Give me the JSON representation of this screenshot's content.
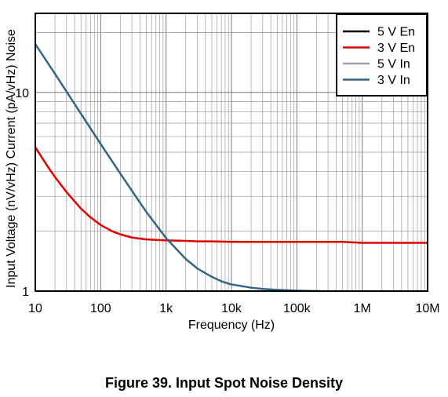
{
  "chart_data": {
    "type": "line",
    "title": "",
    "xlabel": "Frequency (Hz)",
    "ylabel": "Input Voltage (nV/vHz) Current (pA/vHz) Noise",
    "x_scale": "log",
    "y_scale": "log",
    "xlim": [
      10,
      10000000
    ],
    "ylim": [
      1,
      25
    ],
    "x_ticks": [
      {
        "value": 10,
        "label": "10"
      },
      {
        "value": 100,
        "label": "100"
      },
      {
        "value": 1000,
        "label": "1k"
      },
      {
        "value": 10000,
        "label": "10k"
      },
      {
        "value": 100000,
        "label": "100k"
      },
      {
        "value": 1000000,
        "label": "1M"
      },
      {
        "value": 10000000,
        "label": "10M"
      }
    ],
    "y_ticks": [
      {
        "value": 1,
        "label": "1"
      },
      {
        "value": 10,
        "label": "10"
      }
    ],
    "grid": true,
    "legend_position": "top-right",
    "series": [
      {
        "name": "5 V En",
        "color": "#000000",
        "x": [],
        "y": []
      },
      {
        "name": "3 V En",
        "color": "#e00000",
        "x": [
          10,
          15,
          20,
          30,
          50,
          70,
          100,
          150,
          200,
          300,
          500,
          700,
          1000,
          2000,
          3000,
          5000,
          10000,
          100000,
          500000,
          1000000,
          10000000
        ],
        "y": [
          5.3,
          4.3,
          3.75,
          3.15,
          2.6,
          2.35,
          2.15,
          2.0,
          1.93,
          1.86,
          1.82,
          1.81,
          1.8,
          1.79,
          1.78,
          1.78,
          1.77,
          1.77,
          1.77,
          1.75,
          1.75
        ]
      },
      {
        "name": "5 V In",
        "color": "#a0a0a0",
        "x": [],
        "y": []
      },
      {
        "name": "3 V In",
        "color": "#336680",
        "x": [
          10,
          20,
          30,
          50,
          100,
          200,
          300,
          500,
          1000,
          2000,
          3000,
          5000,
          7000,
          10000,
          20000,
          30000,
          50000,
          70000,
          100000,
          150000,
          230000
        ],
        "y": [
          17.5,
          12.4,
          10.1,
          7.8,
          5.5,
          3.9,
          3.2,
          2.5,
          1.85,
          1.45,
          1.3,
          1.18,
          1.12,
          1.08,
          1.04,
          1.025,
          1.015,
          1.01,
          1.005,
          1.002,
          1.0
        ]
      }
    ]
  },
  "caption": "Figure 39. Input Spot Noise Density"
}
